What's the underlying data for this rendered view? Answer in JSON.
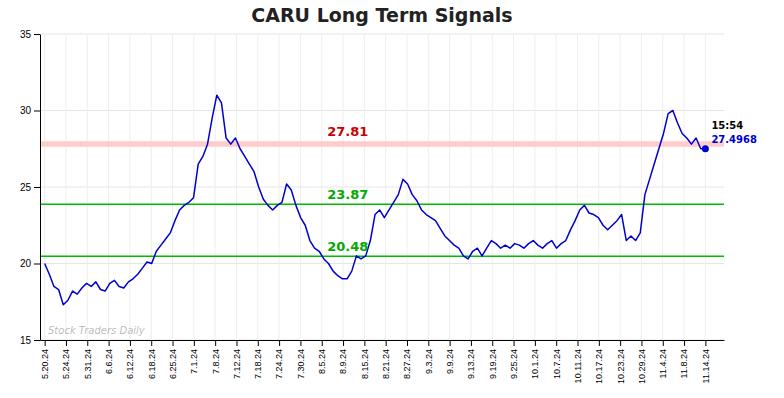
{
  "chart_data": {
    "type": "line",
    "title": "CARU Long Term Signals",
    "x": [
      0,
      1,
      2,
      3,
      4,
      5,
      6,
      7,
      8,
      9,
      10,
      11,
      12,
      13,
      14,
      15,
      16,
      17,
      18,
      19,
      20,
      21,
      22,
      23,
      24,
      25,
      26,
      27,
      28,
      29,
      30,
      31,
      32,
      33,
      34,
      35,
      36,
      37,
      38,
      39,
      40,
      41,
      42,
      43,
      44,
      45,
      46,
      47,
      48,
      49,
      50,
      51,
      52,
      53,
      54,
      55,
      56,
      57,
      58,
      59,
      60,
      61,
      62,
      63,
      64,
      65,
      66,
      67,
      68,
      69,
      70,
      71,
      72,
      73,
      74,
      75,
      76,
      77,
      78,
      79,
      80,
      81,
      82,
      83,
      84,
      85,
      86,
      87,
      88,
      89,
      90,
      91,
      92,
      93,
      94,
      95,
      96,
      97,
      98,
      99,
      100,
      101,
      102,
      103,
      104,
      105,
      106,
      107,
      108,
      109,
      110,
      111,
      112,
      113,
      114,
      115,
      116,
      117,
      118,
      119,
      120,
      121,
      122,
      123,
      124,
      125,
      126,
      127,
      128,
      129,
      130,
      131,
      132,
      133,
      134,
      135,
      136,
      137,
      138,
      139,
      140,
      141,
      142
    ],
    "values": [
      20.0,
      19.3,
      18.5,
      18.3,
      17.3,
      17.6,
      18.2,
      18.0,
      18.4,
      18.7,
      18.5,
      18.8,
      18.3,
      18.2,
      18.7,
      18.9,
      18.5,
      18.4,
      18.8,
      19.0,
      19.3,
      19.7,
      20.1,
      20.0,
      20.8,
      21.2,
      21.6,
      22.0,
      22.8,
      23.5,
      23.8,
      24.0,
      24.3,
      26.5,
      27.0,
      27.8,
      29.5,
      31.0,
      30.5,
      28.2,
      27.8,
      28.2,
      27.5,
      27.0,
      26.5,
      26.0,
      25.0,
      24.2,
      23.8,
      23.5,
      23.8,
      24.0,
      25.2,
      24.8,
      23.8,
      23.0,
      22.5,
      21.5,
      21.0,
      20.8,
      20.3,
      20.0,
      19.5,
      19.2,
      19.0,
      19.0,
      19.5,
      20.5,
      20.3,
      20.5,
      21.5,
      23.2,
      23.5,
      23.0,
      23.5,
      24.0,
      24.5,
      25.5,
      25.2,
      24.5,
      24.1,
      23.5,
      23.2,
      23.0,
      22.8,
      22.3,
      21.8,
      21.5,
      21.2,
      21.0,
      20.5,
      20.3,
      20.8,
      21.0,
      20.5,
      21.0,
      21.5,
      21.3,
      21.0,
      21.2,
      21.0,
      21.3,
      21.2,
      21.0,
      21.3,
      21.5,
      21.2,
      21.0,
      21.3,
      21.5,
      21.0,
      21.3,
      21.5,
      22.2,
      22.8,
      23.5,
      23.8,
      23.3,
      23.2,
      23.0,
      22.5,
      22.2,
      22.5,
      22.8,
      23.2,
      21.5,
      21.8,
      21.5,
      22.0,
      24.5,
      25.5,
      26.5,
      27.5,
      28.5,
      29.8,
      30.0,
      29.2,
      28.5,
      28.2,
      27.8,
      28.2,
      27.5,
      27.4968
    ],
    "color": "#0000cc",
    "xlim": [
      -1,
      146
    ],
    "xticks": [
      {
        "value": 0,
        "label": "5.20.24"
      },
      {
        "value": 4.580645161290323,
        "label": "5.24.24"
      },
      {
        "value": 9.161290322580646,
        "label": "5.31.24"
      },
      {
        "value": 13.741935483870968,
        "label": "6.6.24"
      },
      {
        "value": 18.322580645161292,
        "label": "6.12.24"
      },
      {
        "value": 22.903225806451612,
        "label": "6.18.24"
      },
      {
        "value": 27.483870967741936,
        "label": "6.25.24"
      },
      {
        "value": 32.064516129032256,
        "label": "7.1.24"
      },
      {
        "value": 36.645161290322584,
        "label": "7.8.24"
      },
      {
        "value": 41.225806451612904,
        "label": "7.12.24"
      },
      {
        "value": 45.806451612903224,
        "label": "7.18.24"
      },
      {
        "value": 50.387096774193544,
        "label": "7.24.24"
      },
      {
        "value": 54.96774193548387,
        "label": "7.30.24"
      },
      {
        "value": 59.54838709677419,
        "label": "8.5.24"
      },
      {
        "value": 64.12903225806451,
        "label": "8.9.24"
      },
      {
        "value": 68.70967741935483,
        "label": "8.15.24"
      },
      {
        "value": 73.29032258064517,
        "label": "8.21.24"
      },
      {
        "value": 77.87096774193549,
        "label": "8.27.24"
      },
      {
        "value": 82.45161290322581,
        "label": "9.3.24"
      },
      {
        "value": 87.03225806451613,
        "label": "9.9.24"
      },
      {
        "value": 91.61290322580645,
        "label": "9.13.24"
      },
      {
        "value": 96.19354838709677,
        "label": "9.19.24"
      },
      {
        "value": 100.7741935483871,
        "label": "9.25.24"
      },
      {
        "value": 105.35483870967742,
        "label": "10.1.24"
      },
      {
        "value": 109.93548387096774,
        "label": "10.7.24"
      },
      {
        "value": 114.51612903225806,
        "label": "10.11.24"
      },
      {
        "value": 119.09677419354838,
        "label": "10.17.24"
      },
      {
        "value": 123.6774193548387,
        "label": "10.23.24"
      },
      {
        "value": 128.25806451612902,
        "label": "10.29.24"
      },
      {
        "value": 132.83870967741936,
        "label": "11.4.24"
      },
      {
        "value": 137.41935483870967,
        "label": "11.8.24"
      },
      {
        "value": 142,
        "label": "11.14.24"
      }
    ],
    "ylim": [
      15,
      35
    ],
    "yticks": [
      15,
      20,
      25,
      30,
      35
    ],
    "grid": true,
    "band": {
      "y0": 27.63,
      "y1": 27.99,
      "color": "#ffcccc",
      "label": "27.81",
      "label_color": "#cc0000"
    },
    "reference_lines": [
      {
        "y": 23.87,
        "color": "#00bb00",
        "label": "23.87",
        "label_color": "#00aa00"
      },
      {
        "y": 20.48,
        "color": "#00bb00",
        "label": "20.48",
        "label_color": "#00aa00"
      }
    ],
    "last_time_label": "15:54",
    "watermark": "Stock Traders Daily"
  }
}
